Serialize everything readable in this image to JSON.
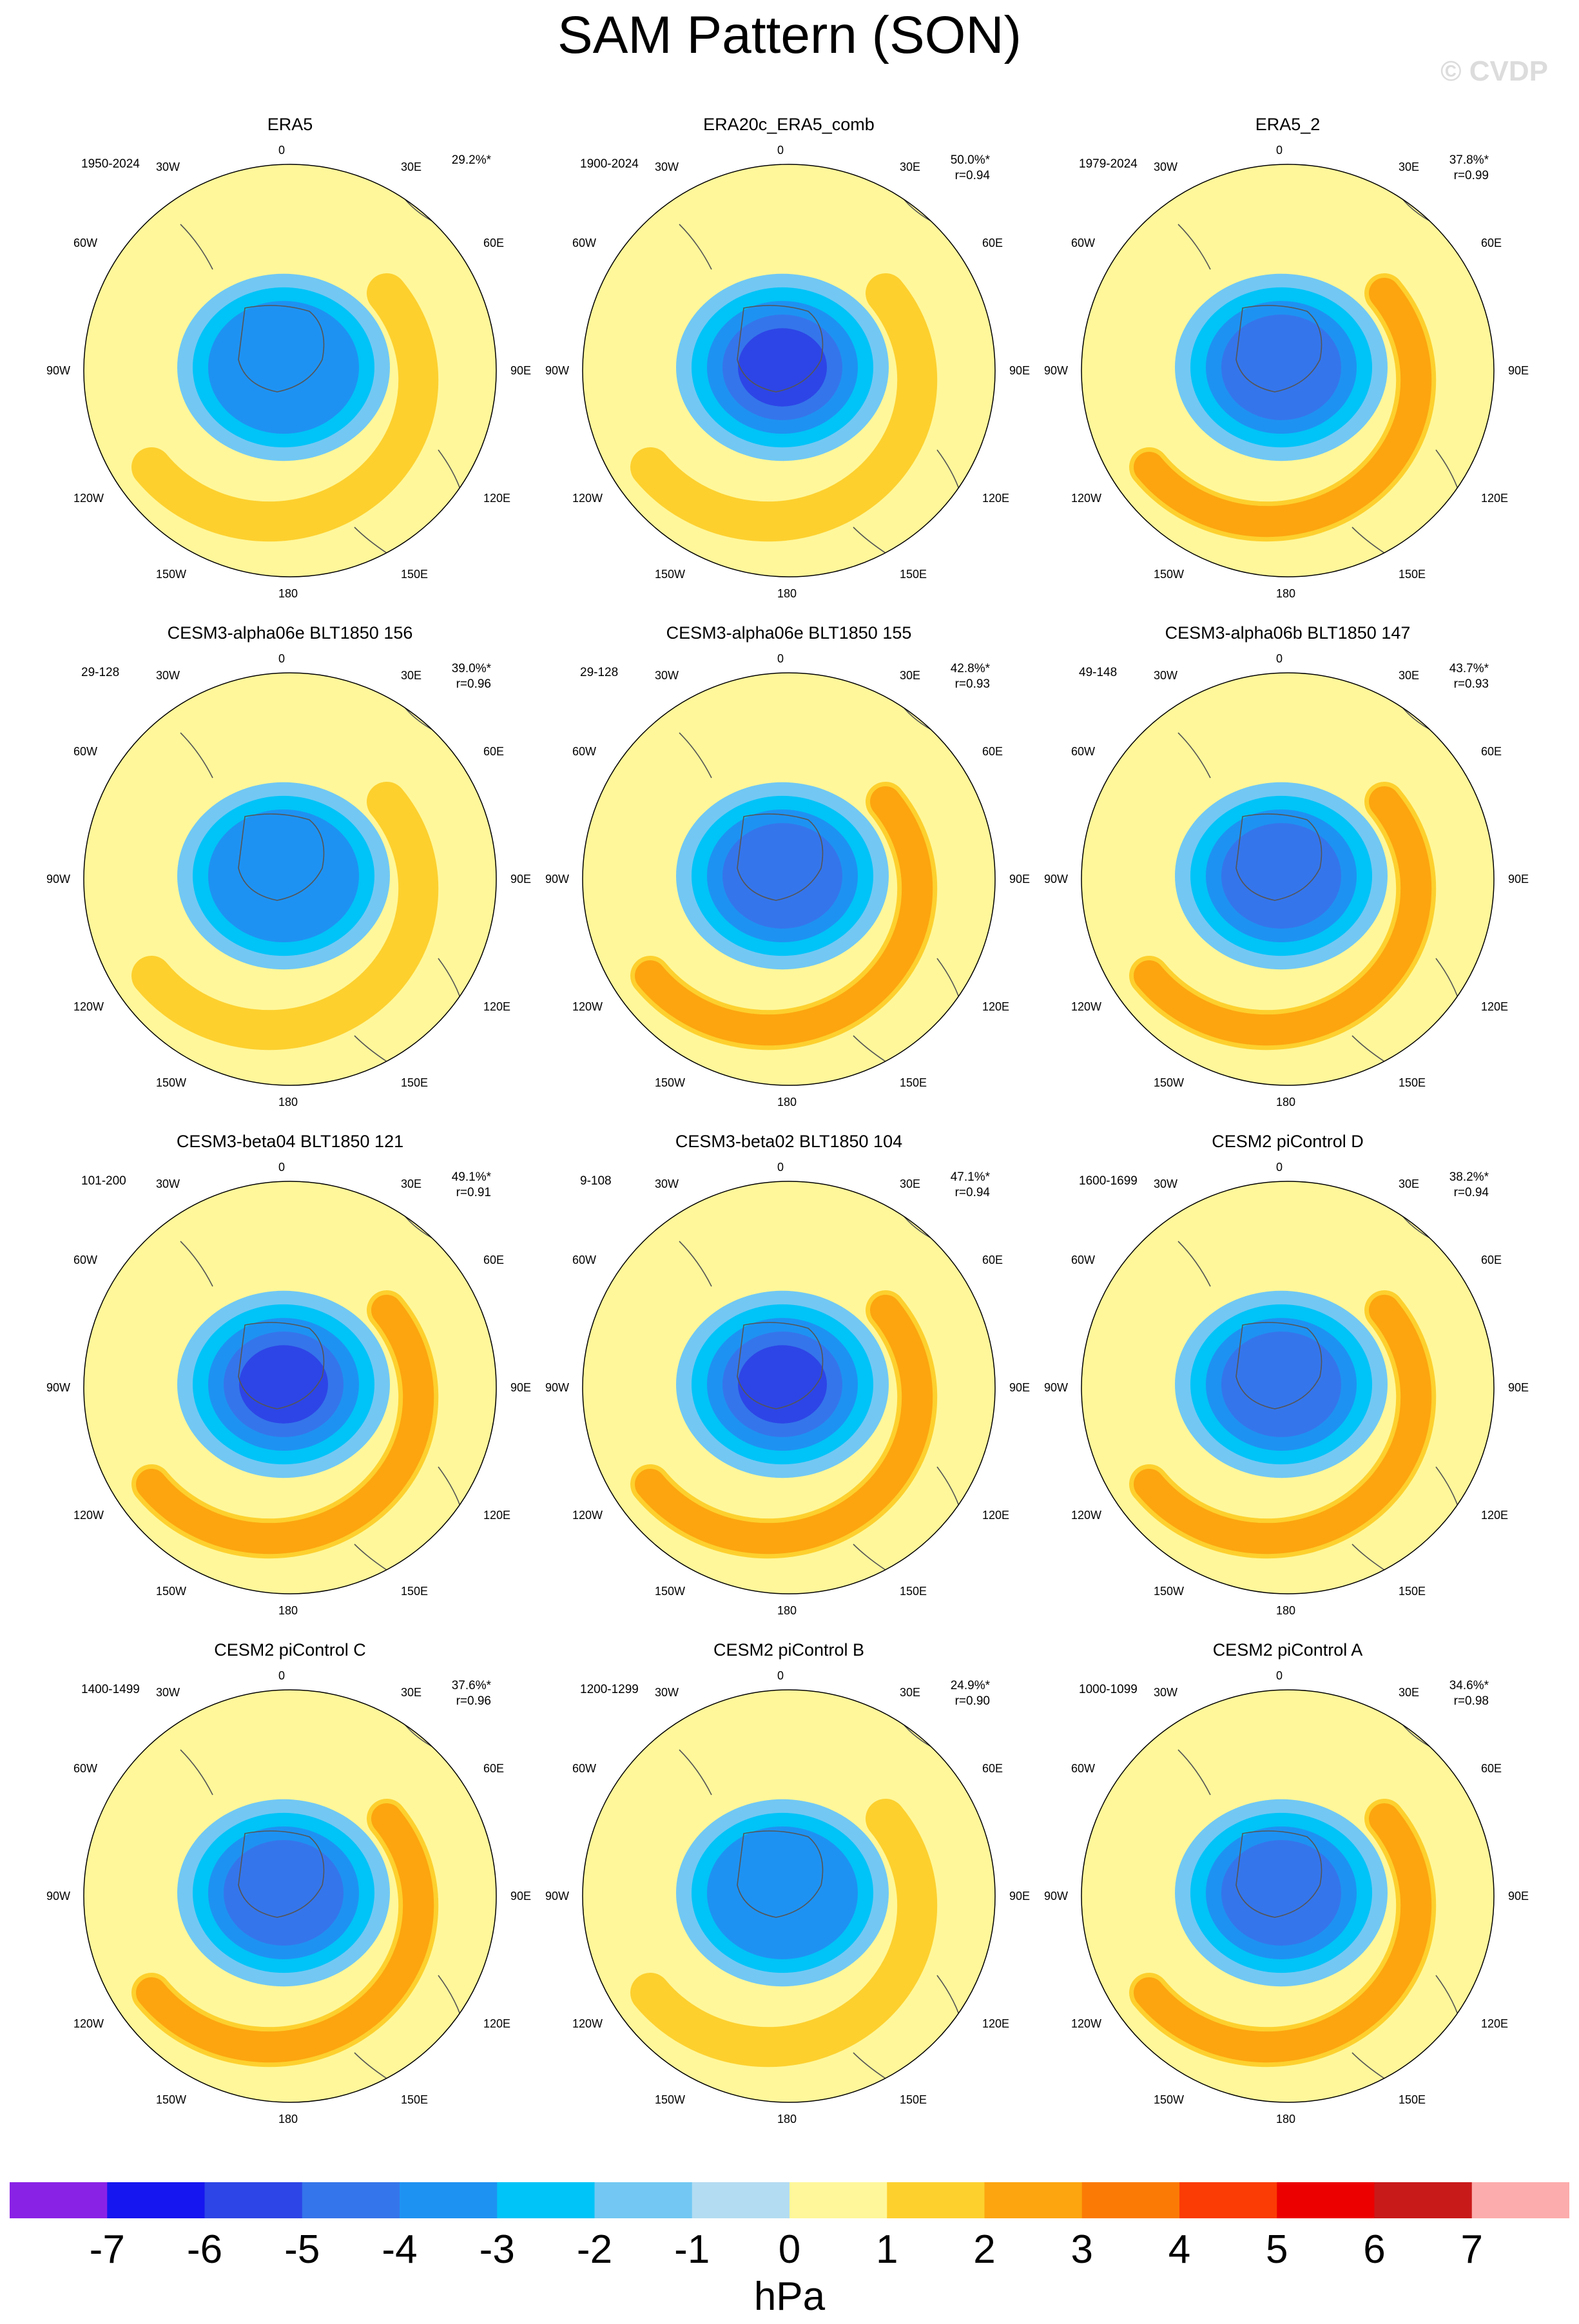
{
  "title": "SAM Pattern (SON)",
  "watermark": "© CVDP",
  "lon_labels": {
    "top": "0",
    "top_right": "30E",
    "right_upper": "60E",
    "right": "90E",
    "right_lower": "120E",
    "bottom_right": "150E",
    "bottom": "180",
    "bottom_left": "150W",
    "left_lower": "120W",
    "left": "90W",
    "left_upper": "60W",
    "top_left": "30W"
  },
  "panels": [
    {
      "title": "ERA5",
      "period": "1950-2024",
      "pct": "29.2%*",
      "corr": "",
      "level": 3.6,
      "ring": 1.8
    },
    {
      "title": "ERA20c_ERA5_comb",
      "period": "1900-2024",
      "pct": "50.0%*",
      "corr": "r=0.94",
      "level": 5.4,
      "ring": 1.6
    },
    {
      "title": "ERA5_2",
      "period": "1979-2024",
      "pct": "37.8%*",
      "corr": "r=0.99",
      "level": 4.4,
      "ring": 2.0
    },
    {
      "title": "CESM3-alpha06e BLT1850 156",
      "period": "29-128",
      "pct": "39.0%*",
      "corr": "r=0.96",
      "level": 3.8,
      "ring": 1.7
    },
    {
      "title": "CESM3-alpha06e BLT1850 155",
      "period": "29-128",
      "pct": "42.8%*",
      "corr": "r=0.93",
      "level": 4.4,
      "ring": 2.4
    },
    {
      "title": "CESM3-alpha06b BLT1850 147",
      "period": "49-148",
      "pct": "43.7%*",
      "corr": "r=0.93",
      "level": 4.6,
      "ring": 2.6
    },
    {
      "title": "CESM3-beta04 BLT1850 121",
      "period": "101-200",
      "pct": "49.1%*",
      "corr": "r=0.91",
      "level": 5.4,
      "ring": 2.8
    },
    {
      "title": "CESM3-beta02 BLT1850 104",
      "period": "9-108",
      "pct": "47.1%*",
      "corr": "r=0.94",
      "level": 5.0,
      "ring": 2.6
    },
    {
      "title": "CESM2 piControl D",
      "period": "1600-1699",
      "pct": "38.2%*",
      "corr": "r=0.94",
      "level": 4.6,
      "ring": 2.2
    },
    {
      "title": "CESM2 piControl C",
      "period": "1400-1499",
      "pct": "37.6%*",
      "corr": "r=0.96",
      "level": 4.4,
      "ring": 2.6
    },
    {
      "title": "CESM2 piControl B",
      "period": "1200-1299",
      "pct": "24.9%*",
      "corr": "r=0.90",
      "level": 3.4,
      "ring": 1.6
    },
    {
      "title": "CESM2 piControl A",
      "period": "1000-1099",
      "pct": "34.6%*",
      "corr": "r=0.98",
      "level": 4.2,
      "ring": 2.0
    }
  ],
  "colorbar": {
    "units": "hPa",
    "labels": [
      "-7",
      "-6",
      "-5",
      "-4",
      "-3",
      "-2",
      "-1",
      "0",
      "1",
      "2",
      "3",
      "4",
      "5",
      "6",
      "7"
    ],
    "colors": [
      "#8a22e6",
      "#1616f0",
      "#2d45e6",
      "#3575eb",
      "#1e92f2",
      "#00c3f7",
      "#72c8f3",
      "#b3dcf2",
      "#fff79a",
      "#fdd02e",
      "#fca50f",
      "#fb7a05",
      "#fb3c05",
      "#ec0000",
      "#c91a1a",
      "#fcacac"
    ]
  }
}
